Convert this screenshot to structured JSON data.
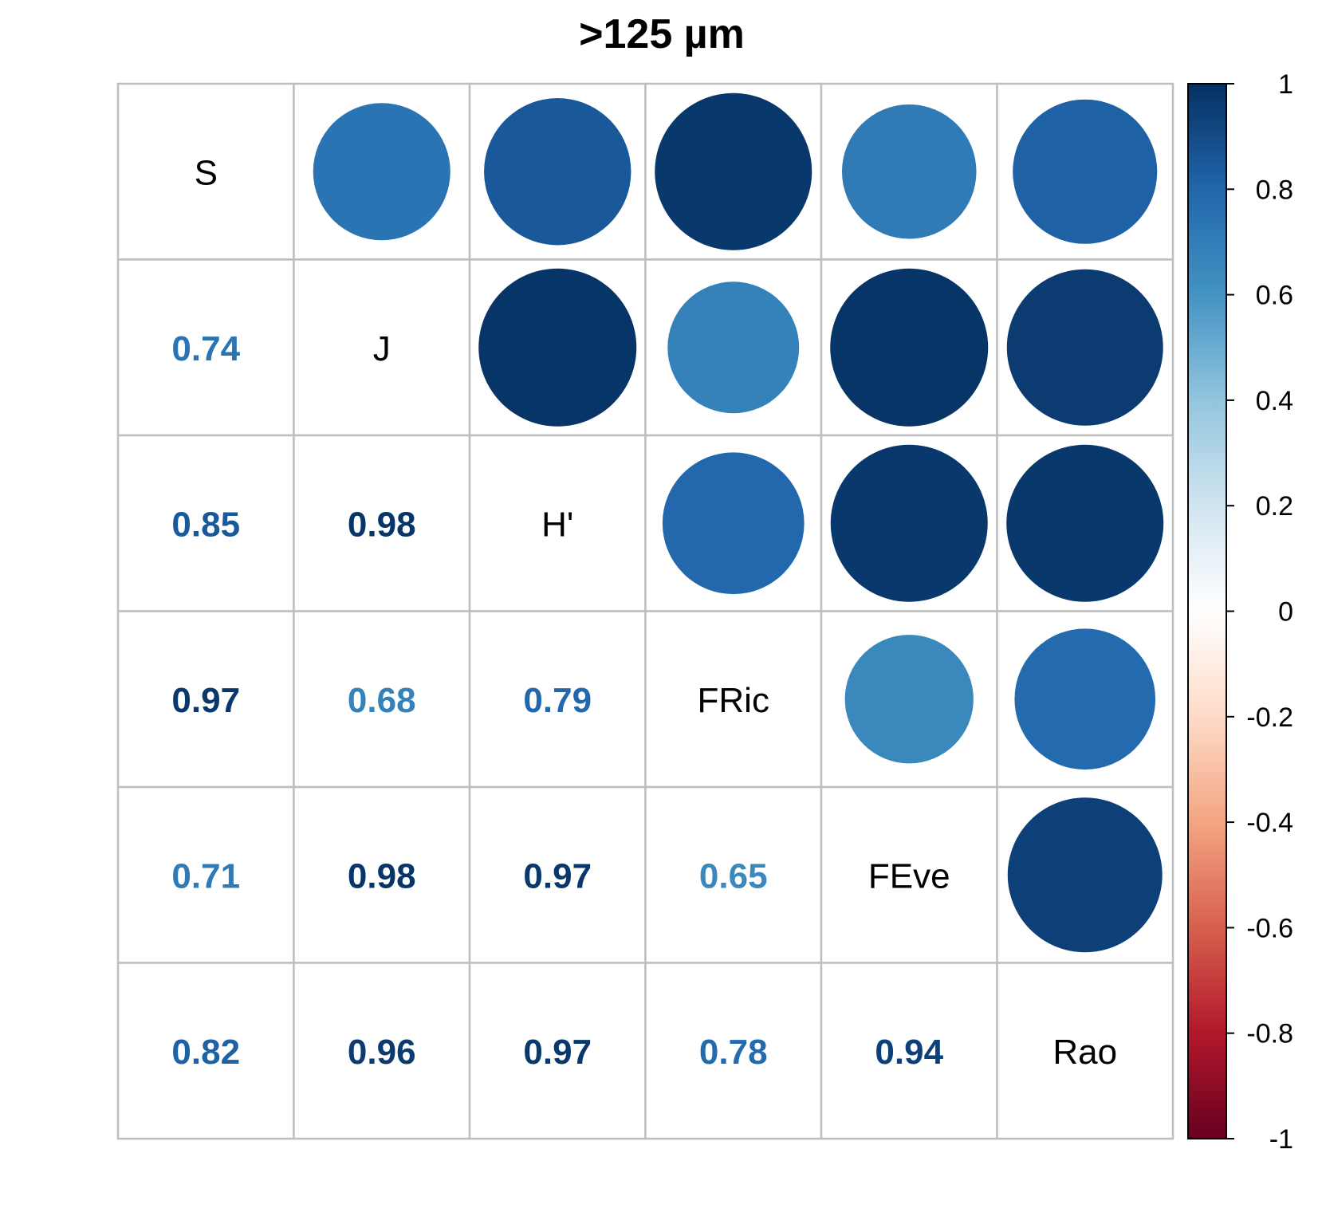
{
  "chart_data": {
    "type": "heatmap",
    "subtype": "correlation-matrix",
    "title": ">125 µm",
    "variables": [
      "S",
      "J",
      "H'",
      "FRic",
      "FEve",
      "Rao"
    ],
    "matrix": [
      [
        1.0,
        0.74,
        0.85,
        0.97,
        0.71,
        0.82
      ],
      [
        0.74,
        1.0,
        0.98,
        0.68,
        0.98,
        0.96
      ],
      [
        0.85,
        0.98,
        1.0,
        0.79,
        0.97,
        0.97
      ],
      [
        0.97,
        0.68,
        0.79,
        1.0,
        0.65,
        0.78
      ],
      [
        0.71,
        0.98,
        0.97,
        0.65,
        1.0,
        0.94
      ],
      [
        0.82,
        0.96,
        0.97,
        0.78,
        0.94,
        1.0
      ]
    ],
    "upper_triangle": "circles",
    "lower_triangle": "numbers",
    "diagonal": "variable names",
    "color_scale": {
      "min": -1,
      "max": 1,
      "ticks": [
        "1",
        "0.8",
        "0.6",
        "0.4",
        "0.2",
        "0",
        "-0.2",
        "-0.4",
        "-0.6",
        "-0.8",
        "-1"
      ],
      "colors": [
        "#67001F",
        "#B2182B",
        "#D6604D",
        "#F4A582",
        "#FDDBC7",
        "#FFFFFF",
        "#D1E5F0",
        "#92C5DE",
        "#4393C3",
        "#2166AC",
        "#053061"
      ]
    },
    "legend_position": "right",
    "grid": true,
    "grid_color": "#BEBEBE"
  }
}
